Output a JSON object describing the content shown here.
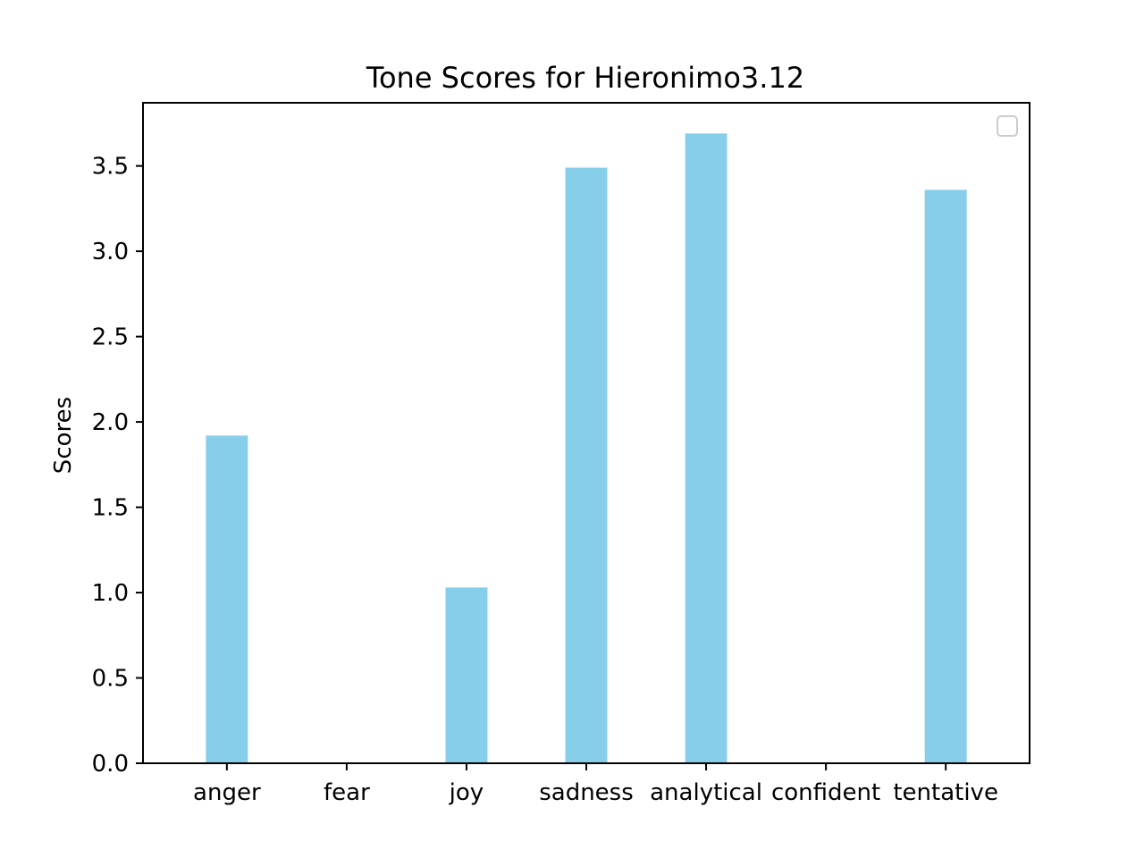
{
  "chart_data": {
    "type": "bar",
    "title": "Tone Scores for Hieronimo3.12",
    "xlabel": "",
    "ylabel": "Scores",
    "categories": [
      "anger",
      "fear",
      "joy",
      "sadness",
      "analytical",
      "confident",
      "tentative"
    ],
    "values": [
      1.92,
      0,
      1.03,
      3.49,
      3.69,
      0,
      3.36
    ],
    "ylim": [
      0,
      3.87
    ],
    "yticks": [
      0.0,
      0.5,
      1.0,
      1.5,
      2.0,
      2.5,
      3.0,
      3.5
    ],
    "ytick_labels": [
      "0.0",
      "0.5",
      "1.0",
      "1.5",
      "2.0",
      "2.5",
      "3.0",
      "3.5"
    ],
    "bar_color": "#87ceeb",
    "grid": false,
    "legend": {
      "placement": "top-right",
      "entries": []
    }
  }
}
